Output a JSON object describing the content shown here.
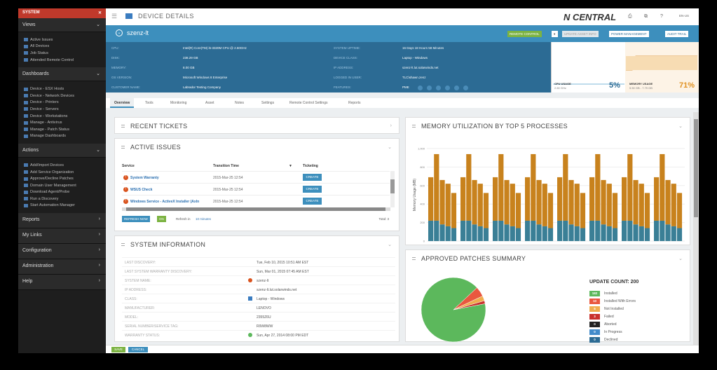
{
  "sidebar": {
    "app_title": "SYSTEM",
    "close": "✕",
    "sections": [
      {
        "title": "Views",
        "items": [
          "Active Issues",
          "All Devices",
          "Job Status",
          "Attended Remote Control"
        ]
      },
      {
        "title": "Dashboards",
        "items": [
          "Device - ESX Hosts",
          "Device - Network Devices",
          "Device - Printers",
          "Device - Servers",
          "Device - Workstations",
          "Manage - Antivirus",
          "Manage - Patch Status",
          "Manage Dashboards"
        ]
      },
      {
        "title": "Actions",
        "items": [
          "Add/Import Devices",
          "Add Service Organization",
          "Approve/Decline Patches",
          "Domain User Management",
          "Download Agent/Probe",
          "Run a Discovery",
          "Start Automation Manager"
        ]
      }
    ],
    "collapsed": [
      "Reports",
      "My Links",
      "Configuration",
      "Administration",
      "Help"
    ]
  },
  "topbar": {
    "title": "DEVICE DETAILS",
    "logo": "N CENTRAL",
    "icons": [
      "⎙",
      "⧉",
      "?"
    ],
    "lang": "EN-US"
  },
  "device": {
    "name": "szenz-lt"
  },
  "header_buttons": {
    "remote": "REMOTE CONTROL",
    "update": "UPDATE ASSET INFO",
    "power": "POWER MANAGEMENT",
    "audit": "AUDIT TRAIL"
  },
  "props": {
    "left": [
      {
        "label": "CPU:",
        "value": "Intel(R) Core(TM) i5-3320M CPU @ 2.60GHz"
      },
      {
        "label": "DISK:",
        "value": "238.29 GB"
      },
      {
        "label": "MEMORY:",
        "value": "8.00 GB"
      },
      {
        "label": "OS VERSION:",
        "value": "Microsoft Windows 8 Enterprise"
      },
      {
        "label": "CUSTOMER NAME:",
        "value": "Labrador Testing Company"
      }
    ],
    "right": [
      {
        "label": "SYSTEM UPTIME:",
        "value": "16 Days 18 Hours 58 Minutes"
      },
      {
        "label": "DEVICE CLASS:",
        "value": "Laptop - Windows"
      },
      {
        "label": "IP ADDRESS:",
        "value": "szenz-lt.lut.solarwinds.net"
      },
      {
        "label": "LOGGED IN USER:",
        "value": "TLC\\shawn.zenz"
      },
      {
        "label": "FEATURES:",
        "value": "PME"
      }
    ]
  },
  "perf": {
    "cpu_label": "CPU USAGE",
    "cpu_sub": "2.60 GHz",
    "cpu_value": "5%",
    "mem_label": "MEMORY USAGE",
    "mem_sub": "5.50 GB - 7.79 GB",
    "mem_value": "71%"
  },
  "tabs": [
    "Overview",
    "Tools",
    "Monitoring",
    "Asset",
    "Notes",
    "Settings",
    "Remote Control Settings",
    "Reports"
  ],
  "recent": {
    "title": "RECENT TICKETS"
  },
  "issues": {
    "title": "ACTIVE ISSUES",
    "headers": {
      "service": "Service",
      "time": "Transition Time",
      "ticket": "Ticketing"
    },
    "rows": [
      {
        "service": "System Warranty",
        "time": "2015-Mar-25 12:54",
        "btn": "CREATE"
      },
      {
        "service": "WSUS Check",
        "time": "2015-Mar-25 12:54",
        "btn": "CREATE"
      },
      {
        "service": "Windows Service - ActiveX Installer (AxIn",
        "time": "2015-Mar-25 12:54",
        "btn": "CREATE"
      }
    ],
    "refresh": "REFRESH NOW",
    "toggle": "ON",
    "refresh_label": "Refresh in",
    "refresh_value": "10 minutes",
    "total": "Total: 3"
  },
  "sysinfo": {
    "title": "SYSTEM INFORMATION",
    "rows": [
      {
        "label": "LAST DISCOVERY:",
        "value": "Tue, Feb 10, 2015 10:51 AM EST"
      },
      {
        "label": "LAST SYSTEM WARRANTY DISCOVERY:",
        "value": "Sun, Mar 01, 2015 07:45 AM EST"
      },
      {
        "label": "SYSTEM NAME:",
        "value": "szenz-lt"
      },
      {
        "label": "IP ADDRESS:",
        "value": "szenz-lt.lut.solarwinds.net"
      },
      {
        "label": "CLASS:",
        "value": "Laptop - Windows"
      },
      {
        "label": "MANUFACTURER:",
        "value": "LENOVO"
      },
      {
        "label": "MODEL:",
        "value": "2355Z6U"
      },
      {
        "label": "SERIAL NUMBER/SERVICE TAG:",
        "value": "R9W8WW"
      },
      {
        "label": "WARRANTY STATUS:",
        "value": "Sun, Apr 27, 2014 08:00 PM EDT"
      }
    ]
  },
  "memchart": {
    "title": "MEMORY UTILIZATION BY TOP 5 PROCESSES",
    "ylabel": "Memory Usage (MB)",
    "ticks": [
      "1,000",
      "800",
      "600",
      "400",
      "200",
      "0"
    ]
  },
  "patches": {
    "title": "APPROVED PATCHES SUMMARY",
    "count_label": "UPDATE COUNT: 200",
    "legend": [
      {
        "n": "182",
        "label": "Installed",
        "color": "#5cb85c"
      },
      {
        "n": "10",
        "label": "Installed With Errors",
        "color": "#e9573f"
      },
      {
        "n": "5",
        "label": "Not Installed",
        "color": "#f0ad4e"
      },
      {
        "n": "3",
        "label": "Failed",
        "color": "#c9302c"
      },
      {
        "n": "0",
        "label": "Aborted",
        "color": "#222222"
      },
      {
        "n": "0",
        "label": "In Progress",
        "color": "#428bca"
      },
      {
        "n": "0",
        "label": "Declined",
        "color": "#2c6b94"
      }
    ]
  },
  "bottom": {
    "save": "SAVE",
    "cancel": "CANCEL"
  },
  "chart_data": [
    {
      "type": "bar",
      "title": "MEMORY UTILIZATION BY TOP 5 PROCESSES",
      "ylabel": "Memory Usage (MB)",
      "ylim": [
        0,
        1000
      ],
      "groups": 8,
      "bars_per_group": 5,
      "series": [
        {
          "name": "",
          "color": "#3a7f96",
          "values": [
            220,
            220,
            180,
            160,
            140,
            220,
            220,
            180,
            160,
            140,
            220,
            220,
            180,
            160,
            140,
            220,
            220,
            180,
            160,
            140,
            220,
            220,
            180,
            160,
            140,
            220,
            220,
            180,
            160,
            140,
            220,
            220,
            180,
            160,
            140,
            220,
            220,
            180,
            160,
            140
          ]
        },
        {
          "name": "",
          "color": "#c8821d",
          "values": [
            470,
            720,
            480,
            460,
            380,
            470,
            720,
            480,
            460,
            380,
            470,
            720,
            480,
            460,
            380,
            470,
            720,
            480,
            460,
            380,
            470,
            720,
            480,
            460,
            380,
            470,
            720,
            480,
            460,
            380,
            470,
            720,
            480,
            460,
            380,
            470,
            720,
            480,
            460,
            380
          ]
        }
      ]
    },
    {
      "type": "pie",
      "title": "APPROVED PATCHES SUMMARY",
      "labels": [
        "Installed",
        "Installed With Errors",
        "Not Installed",
        "Failed"
      ],
      "values": [
        182,
        10,
        5,
        3
      ],
      "colors": [
        "#5cb85c",
        "#e9573f",
        "#f0ad4e",
        "#c9302c"
      ]
    }
  ]
}
